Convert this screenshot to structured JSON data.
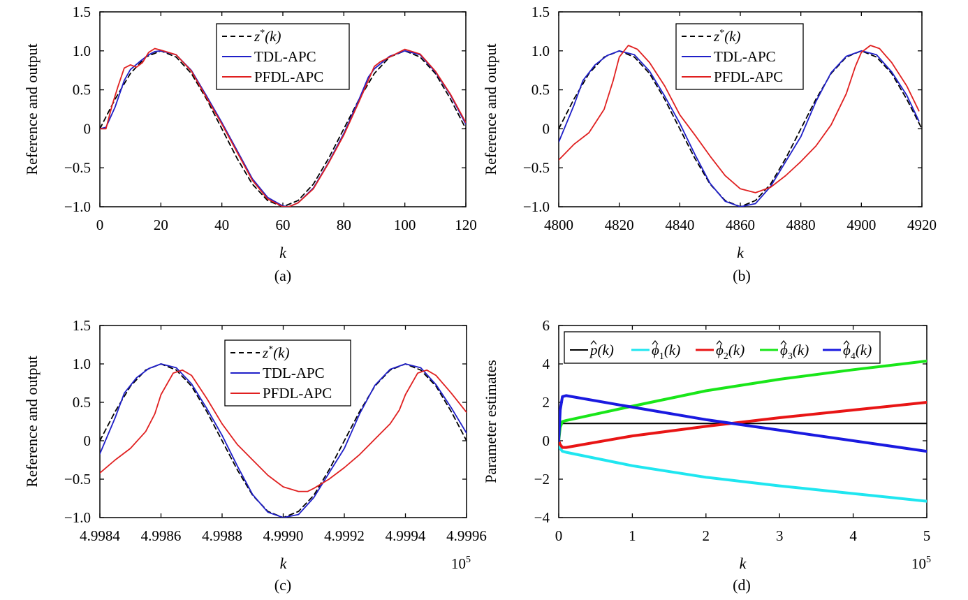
{
  "figure": {
    "captions": [
      "(a)",
      "(b)",
      "(c)",
      "(d)"
    ]
  },
  "chart_data": [
    {
      "type": "line",
      "panel": "a",
      "xlabel": "k",
      "ylabel": "Reference and output",
      "xlim": [
        0,
        120
      ],
      "ylim": [
        -1.0,
        1.5
      ],
      "xticks": [
        0,
        20,
        40,
        60,
        80,
        100,
        120
      ],
      "xtick_labels": [
        "0",
        "20",
        "40",
        "60",
        "80",
        "100",
        "120"
      ],
      "yticks": [
        -1.0,
        -0.5,
        0,
        0.5,
        1.0,
        1.5
      ],
      "ytick_labels": [
        "−1.0",
        "−0.5",
        "0",
        "0.5",
        "1.0",
        "1.5"
      ],
      "x_multiplier": "",
      "legend_position": "top-center",
      "series": [
        {
          "name_main": "z",
          "name_sup": "*",
          "name_arg": "(k)",
          "style": "dashed",
          "color": "#000000",
          "x": [
            0,
            5,
            10,
            15,
            20,
            25,
            30,
            35,
            40,
            45,
            50,
            55,
            60,
            65,
            70,
            75,
            80,
            85,
            90,
            95,
            100,
            105,
            110,
            115,
            120
          ],
          "y": [
            0.0,
            0.38,
            0.71,
            0.92,
            1.0,
            0.92,
            0.71,
            0.38,
            0.0,
            -0.38,
            -0.71,
            -0.92,
            -1.0,
            -0.92,
            -0.71,
            -0.38,
            0.0,
            0.38,
            0.71,
            0.92,
            1.0,
            0.92,
            0.71,
            0.38,
            0.0
          ]
        },
        {
          "name": "TDL-APC",
          "style": "solid",
          "color": "#1f1fc8",
          "x": [
            0,
            2,
            5,
            8,
            10,
            13,
            16,
            18,
            20,
            25,
            30,
            35,
            40,
            45,
            50,
            55,
            60,
            62,
            65,
            70,
            75,
            80,
            85,
            88,
            90,
            95,
            100,
            105,
            110,
            115,
            120
          ],
          "y": [
            0.0,
            0.02,
            0.28,
            0.62,
            0.76,
            0.86,
            0.95,
            0.99,
            1.0,
            0.95,
            0.75,
            0.42,
            0.08,
            -0.28,
            -0.64,
            -0.88,
            -0.99,
            -1.0,
            -0.95,
            -0.76,
            -0.43,
            -0.06,
            0.38,
            0.66,
            0.77,
            0.93,
            1.0,
            0.95,
            0.73,
            0.43,
            0.06
          ]
        },
        {
          "name": "PFDL-APC",
          "style": "solid",
          "color": "#e02020",
          "x": [
            0,
            2,
            4,
            6,
            8,
            10,
            12,
            14,
            16,
            18,
            20,
            25,
            30,
            35,
            40,
            45,
            50,
            55,
            60,
            62,
            65,
            70,
            75,
            80,
            85,
            88,
            90,
            92,
            95,
            100,
            105,
            110,
            115,
            120
          ],
          "y": [
            0.0,
            0.0,
            0.3,
            0.55,
            0.78,
            0.82,
            0.79,
            0.85,
            0.98,
            1.03,
            1.01,
            0.95,
            0.74,
            0.4,
            0.06,
            -0.3,
            -0.66,
            -0.9,
            -1.0,
            -1.0,
            -0.95,
            -0.77,
            -0.44,
            -0.08,
            0.35,
            0.62,
            0.8,
            0.86,
            0.92,
            1.02,
            0.96,
            0.74,
            0.44,
            0.08
          ]
        }
      ]
    },
    {
      "type": "line",
      "panel": "b",
      "xlabel": "k",
      "ylabel": "Reference and output",
      "xlim": [
        4800,
        4920
      ],
      "ylim": [
        -1.0,
        1.5
      ],
      "xticks": [
        4800,
        4820,
        4840,
        4860,
        4880,
        4900,
        4920
      ],
      "xtick_labels": [
        "4800",
        "4820",
        "4840",
        "4860",
        "4880",
        "4900",
        "4920"
      ],
      "yticks": [
        -1.0,
        -0.5,
        0,
        0.5,
        1.0,
        1.5
      ],
      "ytick_labels": [
        "−1.0",
        "−0.5",
        "0",
        "0.5",
        "1.0",
        "1.5"
      ],
      "x_multiplier": "",
      "legend_position": "top-center",
      "series": [
        {
          "name_main": "z",
          "name_sup": "*",
          "name_arg": "(k)",
          "style": "dashed",
          "color": "#000000",
          "x": [
            4800,
            4805,
            4810,
            4815,
            4820,
            4825,
            4830,
            4835,
            4840,
            4845,
            4850,
            4855,
            4860,
            4865,
            4870,
            4875,
            4880,
            4885,
            4890,
            4895,
            4900,
            4905,
            4910,
            4915,
            4920
          ],
          "y": [
            0.0,
            0.38,
            0.71,
            0.92,
            1.0,
            0.92,
            0.71,
            0.38,
            0.0,
            -0.38,
            -0.71,
            -0.92,
            -1.0,
            -0.92,
            -0.71,
            -0.38,
            0.0,
            0.38,
            0.71,
            0.92,
            1.0,
            0.92,
            0.71,
            0.38,
            0.0
          ]
        },
        {
          "name": "TDL-APC",
          "style": "solid",
          "color": "#1f1fc8",
          "x": [
            4800,
            4805,
            4808,
            4812,
            4816,
            4820,
            4825,
            4830,
            4835,
            4840,
            4845,
            4850,
            4855,
            4860,
            4865,
            4870,
            4875,
            4880,
            4885,
            4890,
            4895,
            4900,
            4905,
            4910,
            4915,
            4919
          ],
          "y": [
            -0.17,
            0.3,
            0.62,
            0.82,
            0.94,
            1.0,
            0.95,
            0.74,
            0.42,
            0.07,
            -0.33,
            -0.7,
            -0.93,
            -1.0,
            -0.96,
            -0.74,
            -0.42,
            -0.1,
            0.35,
            0.72,
            0.93,
            1.0,
            0.95,
            0.73,
            0.43,
            0.1
          ]
        },
        {
          "name": "PFDL-APC",
          "style": "solid",
          "color": "#e02020",
          "x": [
            4800,
            4805,
            4810,
            4815,
            4818,
            4820,
            4823,
            4826,
            4830,
            4835,
            4840,
            4845,
            4850,
            4855,
            4860,
            4865,
            4870,
            4875,
            4880,
            4885,
            4890,
            4895,
            4898,
            4900,
            4903,
            4906,
            4910,
            4915,
            4919
          ],
          "y": [
            -0.4,
            -0.2,
            -0.05,
            0.25,
            0.62,
            0.92,
            1.07,
            1.02,
            0.85,
            0.55,
            0.18,
            -0.08,
            -0.35,
            -0.6,
            -0.77,
            -0.82,
            -0.75,
            -0.6,
            -0.42,
            -0.22,
            0.05,
            0.45,
            0.8,
            0.98,
            1.07,
            1.03,
            0.85,
            0.55,
            0.23
          ]
        }
      ]
    },
    {
      "type": "line",
      "panel": "c",
      "xlabel": "k",
      "ylabel": "Reference and output",
      "xlim": [
        4.9984,
        4.9996
      ],
      "ylim": [
        -1.0,
        1.5
      ],
      "xticks": [
        4.9984,
        4.9986,
        4.9988,
        4.999,
        4.9992,
        4.9994,
        4.9996
      ],
      "xtick_labels": [
        "4.9984",
        "4.9986",
        "4.9988",
        "4.9990",
        "4.9992",
        "4.9994",
        "4.9996"
      ],
      "yticks": [
        -1.0,
        -0.5,
        0,
        0.5,
        1.0,
        1.5
      ],
      "ytick_labels": [
        "−1.0",
        "−0.5",
        "0",
        "0.5",
        "1.0",
        "1.5"
      ],
      "x_multiplier": "10",
      "x_multiplier_exp": "5",
      "legend_position": "top-center",
      "series": [
        {
          "name_main": "z",
          "name_sup": "*",
          "name_arg": "(k)",
          "style": "dashed",
          "color": "#000000",
          "x": [
            4.9984,
            4.99845,
            4.9985,
            4.99855,
            4.9986,
            4.99865,
            4.9987,
            4.99875,
            4.9988,
            4.99885,
            4.9989,
            4.99895,
            4.999,
            4.99905,
            4.9991,
            4.99915,
            4.9992,
            4.99925,
            4.9993,
            4.99935,
            4.9994,
            4.99945,
            4.9995,
            4.99955,
            4.9996
          ],
          "y": [
            0.0,
            0.38,
            0.71,
            0.92,
            1.0,
            0.92,
            0.71,
            0.38,
            0.0,
            -0.38,
            -0.71,
            -0.92,
            -1.0,
            -0.92,
            -0.71,
            -0.38,
            0.0,
            0.38,
            0.71,
            0.92,
            1.0,
            0.92,
            0.71,
            0.38,
            0.0
          ]
        },
        {
          "name": "TDL-APC",
          "style": "solid",
          "color": "#1f1fc8",
          "x": [
            4.9984,
            4.99845,
            4.99848,
            4.99852,
            4.99856,
            4.9986,
            4.99865,
            4.9987,
            4.99875,
            4.9988,
            4.99885,
            4.9989,
            4.99895,
            4.999,
            4.99905,
            4.9991,
            4.99915,
            4.9992,
            4.99925,
            4.9993,
            4.99935,
            4.9994,
            4.99945,
            4.9995,
            4.99955,
            4.9996
          ],
          "y": [
            -0.17,
            0.3,
            0.62,
            0.82,
            0.94,
            1.0,
            0.95,
            0.74,
            0.42,
            0.07,
            -0.33,
            -0.7,
            -0.93,
            -1.0,
            -0.96,
            -0.74,
            -0.42,
            -0.1,
            0.35,
            0.72,
            0.93,
            1.0,
            0.95,
            0.73,
            0.43,
            0.1
          ]
        },
        {
          "name": "PFDL-APC",
          "style": "solid",
          "color": "#e02020",
          "x": [
            4.9984,
            4.99845,
            4.9985,
            4.99855,
            4.99858,
            4.9986,
            4.99864,
            4.99867,
            4.9987,
            4.99875,
            4.9988,
            4.99885,
            4.9989,
            4.99895,
            4.999,
            4.99905,
            4.99908,
            4.9991,
            4.99915,
            4.9992,
            4.99925,
            4.9993,
            4.99935,
            4.99938,
            4.9994,
            4.99944,
            4.99947,
            4.9995,
            4.99955,
            4.9996
          ],
          "y": [
            -0.42,
            -0.25,
            -0.1,
            0.12,
            0.35,
            0.6,
            0.88,
            0.92,
            0.85,
            0.55,
            0.22,
            -0.05,
            -0.25,
            -0.45,
            -0.6,
            -0.66,
            -0.66,
            -0.62,
            -0.5,
            -0.35,
            -0.18,
            0.02,
            0.22,
            0.4,
            0.6,
            0.88,
            0.92,
            0.85,
            0.62,
            0.37
          ]
        }
      ]
    },
    {
      "type": "line",
      "panel": "d",
      "xlabel": "k",
      "ylabel": "Parameter estimates",
      "xlim": [
        0,
        5
      ],
      "ylim": [
        -4,
        6
      ],
      "xticks": [
        0,
        1,
        2,
        3,
        4,
        5
      ],
      "xtick_labels": [
        "0",
        "1",
        "2",
        "3",
        "4",
        "5"
      ],
      "yticks": [
        -4,
        -2,
        0,
        2,
        4,
        6
      ],
      "ytick_labels": [
        "−4",
        "−2",
        "0",
        "2",
        "4",
        "6"
      ],
      "x_multiplier": "10",
      "x_multiplier_exp": "5",
      "legend_position": "top",
      "series": [
        {
          "sym": "p",
          "sub": "",
          "arg": "(k)",
          "style": "solid",
          "color": "#000000",
          "width": 2,
          "x": [
            0,
            0.02,
            0.05,
            5
          ],
          "y": [
            0,
            0.9,
            0.9,
            0.9
          ]
        },
        {
          "sym": "ϕ",
          "sub": "1",
          "arg": "(k)",
          "style": "solid",
          "color": "#1fe6f0",
          "width": 4,
          "x": [
            0,
            0.02,
            0.05,
            0.1,
            1,
            2,
            3,
            4,
            5
          ],
          "y": [
            0,
            -0.4,
            -0.55,
            -0.6,
            -1.3,
            -1.9,
            -2.35,
            -2.75,
            -3.15
          ]
        },
        {
          "sym": "ϕ",
          "sub": "2",
          "arg": "(k)",
          "style": "solid",
          "color": "#e81515",
          "width": 4,
          "x": [
            0,
            0.02,
            0.05,
            0.1,
            1,
            2,
            3,
            4,
            5
          ],
          "y": [
            0,
            -0.2,
            -0.35,
            -0.35,
            0.25,
            0.75,
            1.2,
            1.6,
            2.0
          ]
        },
        {
          "sym": "ϕ",
          "sub": "3",
          "arg": "(k)",
          "style": "solid",
          "color": "#19e619",
          "width": 4,
          "x": [
            0,
            0.02,
            0.05,
            0.1,
            1,
            2,
            3,
            4,
            5
          ],
          "y": [
            0,
            0.7,
            1.0,
            1.05,
            1.8,
            2.6,
            3.2,
            3.7,
            4.15
          ]
        },
        {
          "sym": "ϕ",
          "sub": "4",
          "arg": "(k)",
          "style": "solid",
          "color": "#1a1ae0",
          "width": 4,
          "x": [
            0,
            0.02,
            0.05,
            0.1,
            1,
            2,
            3,
            4,
            5
          ],
          "y": [
            0,
            1.6,
            2.3,
            2.35,
            1.75,
            1.1,
            0.55,
            0.0,
            -0.55
          ]
        }
      ]
    }
  ]
}
